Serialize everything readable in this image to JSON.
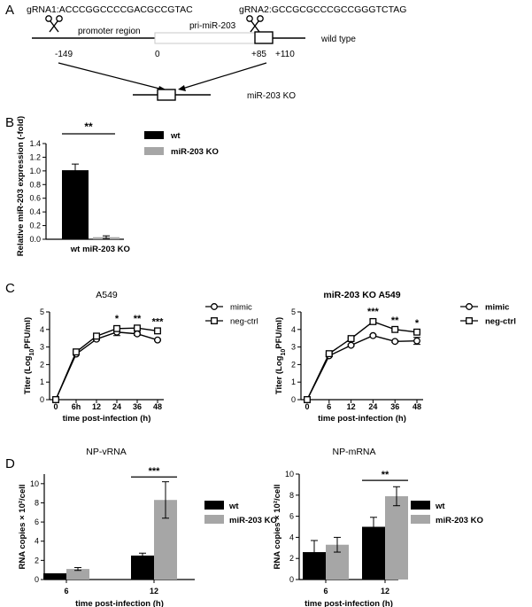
{
  "colors": {
    "ink": "#000000",
    "gray": "#a6a6a6",
    "light_line": "#c8c8c8"
  },
  "panel_labels": {
    "a": "A",
    "b": "B",
    "c": "C",
    "d": "D"
  },
  "panelA": {
    "grna1": "gRNA1:ACCCGGCCCCGACGCCGTAC",
    "grna2": "gRNA2:GCCGCGCCCGCCGGGTCTAG",
    "promoter": "promoter region",
    "primir": "pri-miR-203",
    "wildtype": "wild type",
    "ko": "miR-203 KO",
    "pos_m149": "-149",
    "pos_0": "0",
    "pos_85": "+85",
    "pos_110": "+110"
  },
  "chart_data": [
    {
      "id": "B",
      "type": "bar",
      "title": "",
      "xlabel": "",
      "ylabel": "Relative miR-203 expression (-fold)",
      "ylim": [
        0,
        1.4
      ],
      "yticks": [
        "0.0",
        "0.2",
        "0.4",
        "0.6",
        "0.8",
        "1.0",
        "1.2",
        "1.4"
      ],
      "categories": [
        "wt",
        "miR-203 KO"
      ],
      "values": [
        1.01,
        0.03
      ],
      "errors": [
        0.09,
        0.02
      ],
      "colors": [
        "#000000",
        "#a6a6a6"
      ],
      "legend": [
        "wt",
        "miR-203 KO"
      ],
      "significance": "**"
    },
    {
      "id": "C1",
      "type": "line",
      "title": "A549",
      "xlabel": "time post-infection (h)",
      "ylabel": "Titer (Log10PFU/ml)",
      "ylim": [
        0,
        5
      ],
      "yticks": [
        "0",
        "1",
        "2",
        "3",
        "4",
        "5"
      ],
      "categories": [
        "0",
        "6h",
        "12",
        "24",
        "36",
        "48"
      ],
      "series": [
        {
          "name": "mimic",
          "marker": "circle",
          "values": [
            0,
            2.6,
            3.45,
            3.85,
            3.75,
            3.4
          ],
          "errors": [
            0,
            0.05,
            0.05,
            0.2,
            0.08,
            0.05
          ]
        },
        {
          "name": "neg-ctrl",
          "marker": "square",
          "values": [
            0,
            2.72,
            3.62,
            4.05,
            4.08,
            3.92
          ],
          "errors": [
            0,
            0.05,
            0.05,
            0.08,
            0.05,
            0.05
          ]
        }
      ],
      "annotations": [
        "",
        "",
        "",
        "*",
        "**",
        "***"
      ]
    },
    {
      "id": "C2",
      "type": "line",
      "title": "miR-203 KO A549",
      "xlabel": "time post-infection (h)",
      "ylabel": "Titer (Log10PFU/ml)",
      "ylim": [
        0,
        5
      ],
      "yticks": [
        "0",
        "1",
        "2",
        "3",
        "4",
        "5"
      ],
      "categories": [
        "0",
        "6",
        "12",
        "24",
        "36",
        "48"
      ],
      "series": [
        {
          "name": "mimic",
          "marker": "circle",
          "values": [
            0,
            2.5,
            3.1,
            3.65,
            3.32,
            3.35
          ],
          "errors": [
            0,
            0.05,
            0.05,
            0.05,
            0.05,
            0.2
          ]
        },
        {
          "name": "neg-ctrl",
          "marker": "square",
          "values": [
            0,
            2.62,
            3.48,
            4.45,
            4.0,
            3.85
          ],
          "errors": [
            0,
            0.05,
            0.05,
            0.1,
            0.05,
            0.05
          ]
        }
      ],
      "annotations": [
        "",
        "",
        "",
        "***",
        "**",
        "*"
      ]
    },
    {
      "id": "D1",
      "type": "bar",
      "title": "NP-vRNA",
      "xlabel": "time post-infection (h)",
      "ylabel": "RNA copies × 10²/cell",
      "ylim": [
        0,
        11
      ],
      "yticks": [
        "0",
        "2",
        "4",
        "6",
        "8",
        "10"
      ],
      "categories": [
        "6",
        "12"
      ],
      "series": [
        {
          "name": "wt",
          "color": "#000000",
          "values": [
            0.65,
            2.5
          ],
          "errors": [
            0,
            0.25
          ]
        },
        {
          "name": "miR-203 KO",
          "color": "#a6a6a6",
          "values": [
            1.1,
            8.3
          ],
          "errors": [
            0.15,
            1.9
          ]
        }
      ],
      "significance": "***"
    },
    {
      "id": "D2",
      "type": "bar",
      "title": "NP-mRNA",
      "xlabel": "time post-infection (h)",
      "ylabel": "RNA copies × 10²/cell",
      "ylim": [
        0,
        10
      ],
      "yticks": [
        "0",
        "2",
        "4",
        "6",
        "8",
        "10"
      ],
      "categories": [
        "6",
        "12"
      ],
      "series": [
        {
          "name": "wt",
          "color": "#000000",
          "values": [
            2.6,
            5.0
          ],
          "errors": [
            1.1,
            0.9
          ]
        },
        {
          "name": "miR-203 KO",
          "color": "#a6a6a6",
          "values": [
            3.3,
            7.9
          ],
          "errors": [
            0.7,
            0.9
          ]
        }
      ],
      "significance": "**"
    }
  ]
}
